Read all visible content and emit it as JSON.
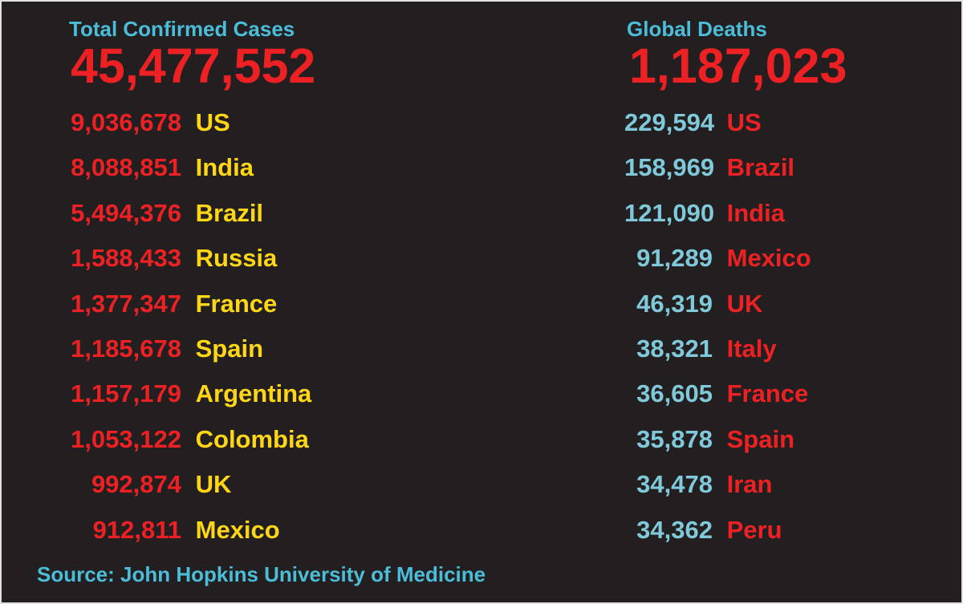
{
  "colors": {
    "background": "#231f20",
    "red": "#ed2124",
    "yellow": "#fed616",
    "cyan": "#4bbdd9",
    "light_cyan": "#7fc9da"
  },
  "confirmed": {
    "title": "Total Confirmed Cases",
    "total": "45,477,552",
    "rows": [
      {
        "value": "9,036,678",
        "label": "US"
      },
      {
        "value": "8,088,851",
        "label": "India"
      },
      {
        "value": "5,494,376",
        "label": "Brazil"
      },
      {
        "value": "1,588,433",
        "label": "Russia"
      },
      {
        "value": "1,377,347",
        "label": "France"
      },
      {
        "value": "1,185,678",
        "label": "Spain"
      },
      {
        "value": "1,157,179",
        "label": "Argentina"
      },
      {
        "value": "1,053,122",
        "label": "Colombia"
      },
      {
        "value": "992,874",
        "label": "UK"
      },
      {
        "value": "912,811",
        "label": "Mexico"
      }
    ]
  },
  "deaths": {
    "title": "Global Deaths",
    "total": "1,187,023",
    "rows": [
      {
        "value": "229,594",
        "label": "US"
      },
      {
        "value": "158,969",
        "label": "Brazil"
      },
      {
        "value": "121,090",
        "label": "India"
      },
      {
        "value": "91,289",
        "label": "Mexico"
      },
      {
        "value": "46,319",
        "label": "UK"
      },
      {
        "value": "38,321",
        "label": "Italy"
      },
      {
        "value": "36,605",
        "label": "France"
      },
      {
        "value": "35,878",
        "label": "Spain"
      },
      {
        "value": "34,478",
        "label": "Iran"
      },
      {
        "value": "34,362",
        "label": "Peru"
      }
    ]
  },
  "footer": {
    "source": "Source: John Hopkins University of Medicine"
  },
  "chart_data": [
    {
      "type": "table",
      "title": "Total Confirmed Cases",
      "total": 45477552,
      "columns": [
        "confirmed_cases",
        "country"
      ],
      "rows": [
        [
          9036678,
          "US"
        ],
        [
          8088851,
          "India"
        ],
        [
          5494376,
          "Brazil"
        ],
        [
          1588433,
          "Russia"
        ],
        [
          1377347,
          "France"
        ],
        [
          1185678,
          "Spain"
        ],
        [
          1157179,
          "Argentina"
        ],
        [
          1053122,
          "Colombia"
        ],
        [
          992874,
          "UK"
        ],
        [
          912811,
          "Mexico"
        ]
      ]
    },
    {
      "type": "table",
      "title": "Global Deaths",
      "total": 1187023,
      "columns": [
        "deaths",
        "country"
      ],
      "rows": [
        [
          229594,
          "US"
        ],
        [
          158969,
          "Brazil"
        ],
        [
          121090,
          "India"
        ],
        [
          91289,
          "Mexico"
        ],
        [
          46319,
          "UK"
        ],
        [
          38321,
          "Italy"
        ],
        [
          36605,
          "France"
        ],
        [
          35878,
          "Spain"
        ],
        [
          34478,
          "Iran"
        ],
        [
          34362,
          "Peru"
        ]
      ]
    }
  ]
}
